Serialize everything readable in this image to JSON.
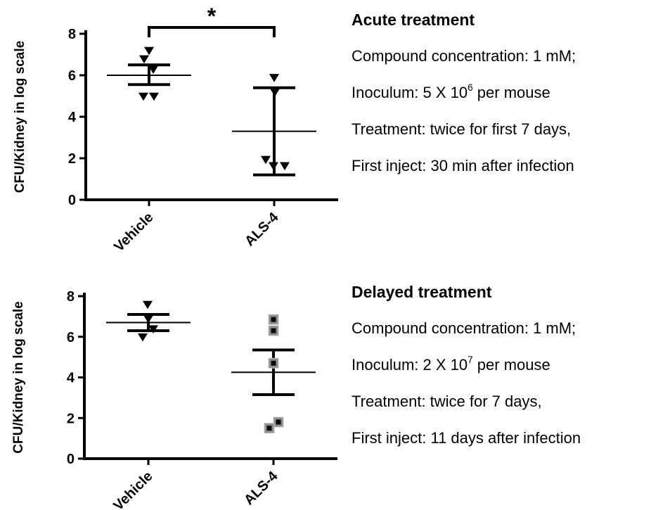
{
  "figure": {
    "background": "#ffffff",
    "ink_color": "#000000",
    "square_marker_fill": "#8e8e8e",
    "square_marker_center": "#0b0b0b"
  },
  "notes": [
    {
      "title": "Acute treatment",
      "lines": [
        {
          "pre": "Compound concentration: 1 mM;",
          "sup": "",
          "post": ""
        },
        {
          "pre": "Inoculum: 5 X 10",
          "sup": "6",
          "post": " per mouse"
        },
        {
          "pre": "Treatment: twice for first 7 days,",
          "sup": "",
          "post": ""
        },
        {
          "pre": "First inject: 30 min after infection",
          "sup": "",
          "post": ""
        }
      ]
    },
    {
      "title": "Delayed treatment",
      "lines": [
        {
          "pre": "Compound concentration: 1 mM;",
          "sup": "",
          "post": ""
        },
        {
          "pre": "Inoculum: 2 X 10",
          "sup": "7",
          "post": " per mouse"
        },
        {
          "pre": "Treatment: twice for 7 days,",
          "sup": "",
          "post": ""
        },
        {
          "pre": "First inject: 11 days after infection",
          "sup": "",
          "post": ""
        }
      ]
    }
  ],
  "chart_data": [
    {
      "type": "scatter",
      "title": "Acute treatment",
      "ylabel": "CFU/Kidney in log scale",
      "ylim": [
        0,
        8
      ],
      "yticks": [
        0,
        2,
        4,
        6,
        8
      ],
      "categories": [
        "Vehicle",
        "ALS-4"
      ],
      "significance": {
        "label": "*",
        "between": [
          "Vehicle",
          "ALS-4"
        ]
      },
      "groups": [
        {
          "category": "Vehicle",
          "marker": "triangle-down",
          "mean": 6.0,
          "error_low": 5.55,
          "error_high": 6.5,
          "points": [
            {
              "value": 7.2,
              "dx": 0
            },
            {
              "value": 6.8,
              "dx": -7
            },
            {
              "value": 6.3,
              "dx": 6
            },
            {
              "value": 5.0,
              "dx": -8
            },
            {
              "value": 5.0,
              "dx": 7
            }
          ]
        },
        {
          "category": "ALS-4",
          "marker": "triangle-down",
          "mean": 3.3,
          "error_low": 1.2,
          "error_high": 5.4,
          "points": [
            {
              "value": 5.9,
              "dx": 0
            },
            {
              "value": 5.2,
              "dx": 1
            },
            {
              "value": 1.95,
              "dx": -12
            },
            {
              "value": 1.65,
              "dx": -1
            },
            {
              "value": 1.65,
              "dx": 15
            }
          ]
        }
      ]
    },
    {
      "type": "scatter",
      "title": "Delayed treatment",
      "ylabel": "CFU/Kidney in log scale",
      "ylim": [
        0,
        8
      ],
      "yticks": [
        0,
        2,
        4,
        6,
        8
      ],
      "categories": [
        "Vehicle",
        "ALS-4"
      ],
      "significance": null,
      "groups": [
        {
          "category": "Vehicle",
          "marker": "triangle-down",
          "mean": 6.7,
          "error_low": 6.3,
          "error_high": 7.1,
          "points": [
            {
              "value": 7.6,
              "dx": -1
            },
            {
              "value": 6.9,
              "dx": 0
            },
            {
              "value": 6.4,
              "dx": 7
            },
            {
              "value": 6.0,
              "dx": -8
            }
          ]
        },
        {
          "category": "ALS-4",
          "marker": "square-gray",
          "mean": 4.25,
          "error_low": 3.15,
          "error_high": 5.35,
          "points": [
            {
              "value": 6.85,
              "dx": 0
            },
            {
              "value": 6.3,
              "dx": 0
            },
            {
              "value": 4.7,
              "dx": 0
            },
            {
              "value": 1.8,
              "dx": 7
            },
            {
              "value": 1.5,
              "dx": -6
            }
          ]
        }
      ]
    }
  ]
}
